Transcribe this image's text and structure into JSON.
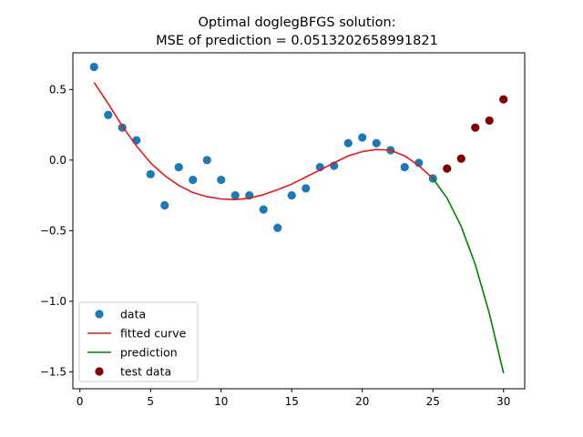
{
  "chart_data": {
    "type": "scatter",
    "title_line1": "Optimal doglegBFGS solution:",
    "title_line2": "MSE of prediction = 0.0513202658991821",
    "xlabel": "",
    "ylabel": "",
    "xlim": [
      -0.5,
      31.5
    ],
    "ylim": [
      -1.62,
      0.76
    ],
    "xticks": [
      0,
      5,
      10,
      15,
      20,
      25,
      30
    ],
    "yticks": [
      0.5,
      0.0,
      -0.5,
      -1.0,
      -1.5
    ],
    "ytick_labels": [
      "0.5",
      "0.0",
      "−0.5",
      "−1.0",
      "−1.5"
    ],
    "grid": false,
    "legend_position": "lower-left",
    "series": [
      {
        "name": "data",
        "kind": "scatter",
        "color": "#1f77b4",
        "x": [
          1,
          2,
          3,
          4,
          5,
          6,
          7,
          8,
          9,
          10,
          11,
          12,
          13,
          14,
          15,
          16,
          17,
          18,
          19,
          20,
          21,
          22,
          23,
          24,
          25
        ],
        "y": [
          0.66,
          0.32,
          0.23,
          0.14,
          -0.1,
          -0.32,
          -0.05,
          -0.14,
          0.0,
          -0.14,
          -0.25,
          -0.25,
          -0.35,
          -0.48,
          -0.25,
          -0.2,
          -0.05,
          -0.04,
          0.12,
          0.16,
          0.12,
          0.07,
          -0.05,
          -0.02,
          -0.13
        ]
      },
      {
        "name": "fitted curve",
        "kind": "line",
        "color": "#e31a1c",
        "x": [
          1,
          2,
          3,
          4,
          5,
          6,
          7,
          8,
          9,
          10,
          11,
          12,
          13,
          14,
          15,
          16,
          17,
          18,
          19,
          20,
          21,
          22,
          23,
          24,
          25
        ],
        "y": [
          0.55,
          0.4,
          0.24,
          0.1,
          -0.02,
          -0.11,
          -0.18,
          -0.23,
          -0.26,
          -0.275,
          -0.28,
          -0.27,
          -0.245,
          -0.21,
          -0.17,
          -0.12,
          -0.07,
          -0.02,
          0.03,
          0.06,
          0.075,
          0.07,
          0.03,
          -0.04,
          -0.13
        ]
      },
      {
        "name": "prediction",
        "kind": "line",
        "color": "#008000",
        "x": [
          25,
          26,
          27,
          28,
          29,
          30
        ],
        "y": [
          -0.13,
          -0.27,
          -0.47,
          -0.74,
          -1.09,
          -1.51
        ]
      },
      {
        "name": "test data",
        "kind": "scatter",
        "color": "#800000",
        "x": [
          26,
          27,
          28,
          29,
          30
        ],
        "y": [
          -0.06,
          0.01,
          0.23,
          0.28,
          0.43
        ]
      }
    ]
  }
}
